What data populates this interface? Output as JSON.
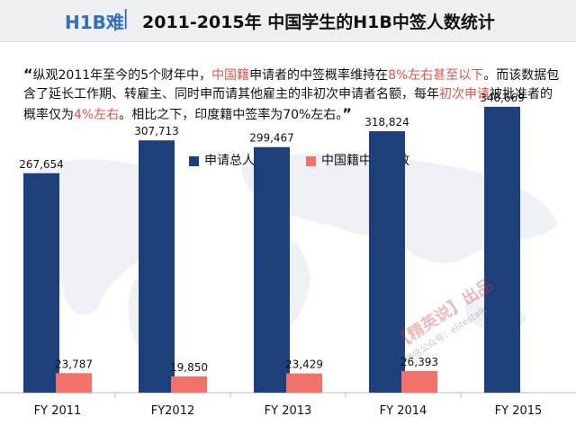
{
  "header": {
    "tag": "H1B难",
    "separator": "|",
    "title": "2011-2015年  中国学生的H1B中签人数统计"
  },
  "quote": {
    "open": "“",
    "segments": [
      {
        "text": "纵观2011年至今的5个财年中，",
        "highlight": false
      },
      {
        "text": "中国籍",
        "highlight": true
      },
      {
        "text": "申请者的中签概率维持在",
        "highlight": false
      },
      {
        "text": "8%左右甚至以下",
        "highlight": true
      },
      {
        "text": "。而该数据包含了延长工作期、转雇主、同时申而请其他雇主的非初次申请者名额，每年",
        "highlight": false
      },
      {
        "text": "初次申请",
        "highlight": true
      },
      {
        "text": "被批准者的概率仅为",
        "highlight": false
      },
      {
        "text": "4%左右",
        "highlight": true
      },
      {
        "text": "。相比之下，印度籍中签率为70%左右。",
        "highlight": false
      }
    ],
    "close": "”"
  },
  "watermark": {
    "brand": "【精英说】出品",
    "sub": "微信公众号：elitestalk"
  },
  "colors": {
    "total": "#1d3f7a",
    "china": "#f2716b",
    "highlight": "#e0524c",
    "header_tag": "#2f6fbd"
  },
  "chart_data": {
    "type": "bar",
    "title": "",
    "xlabel": "",
    "ylabel": "",
    "grid": false,
    "legend_position": "top",
    "categories": [
      "FY 2011",
      "FY2012",
      "FY 2013",
      "FY 2014",
      "FY 2015"
    ],
    "series": [
      {
        "name": "申请总人数",
        "color": "#1d3f7a",
        "values": [
          267654,
          307713,
          299467,
          318824,
          348669
        ],
        "labels": [
          "267,654",
          "307,713",
          "299,467",
          "318,824",
          "348,669"
        ]
      },
      {
        "name": "中国籍中签人数",
        "color": "#f2716b",
        "values": [
          23787,
          19850,
          23429,
          26393,
          null
        ],
        "labels": [
          "23,787",
          "19,850",
          "23,429",
          "26,393",
          ""
        ]
      }
    ],
    "ylim": [
      0,
      400000
    ]
  }
}
